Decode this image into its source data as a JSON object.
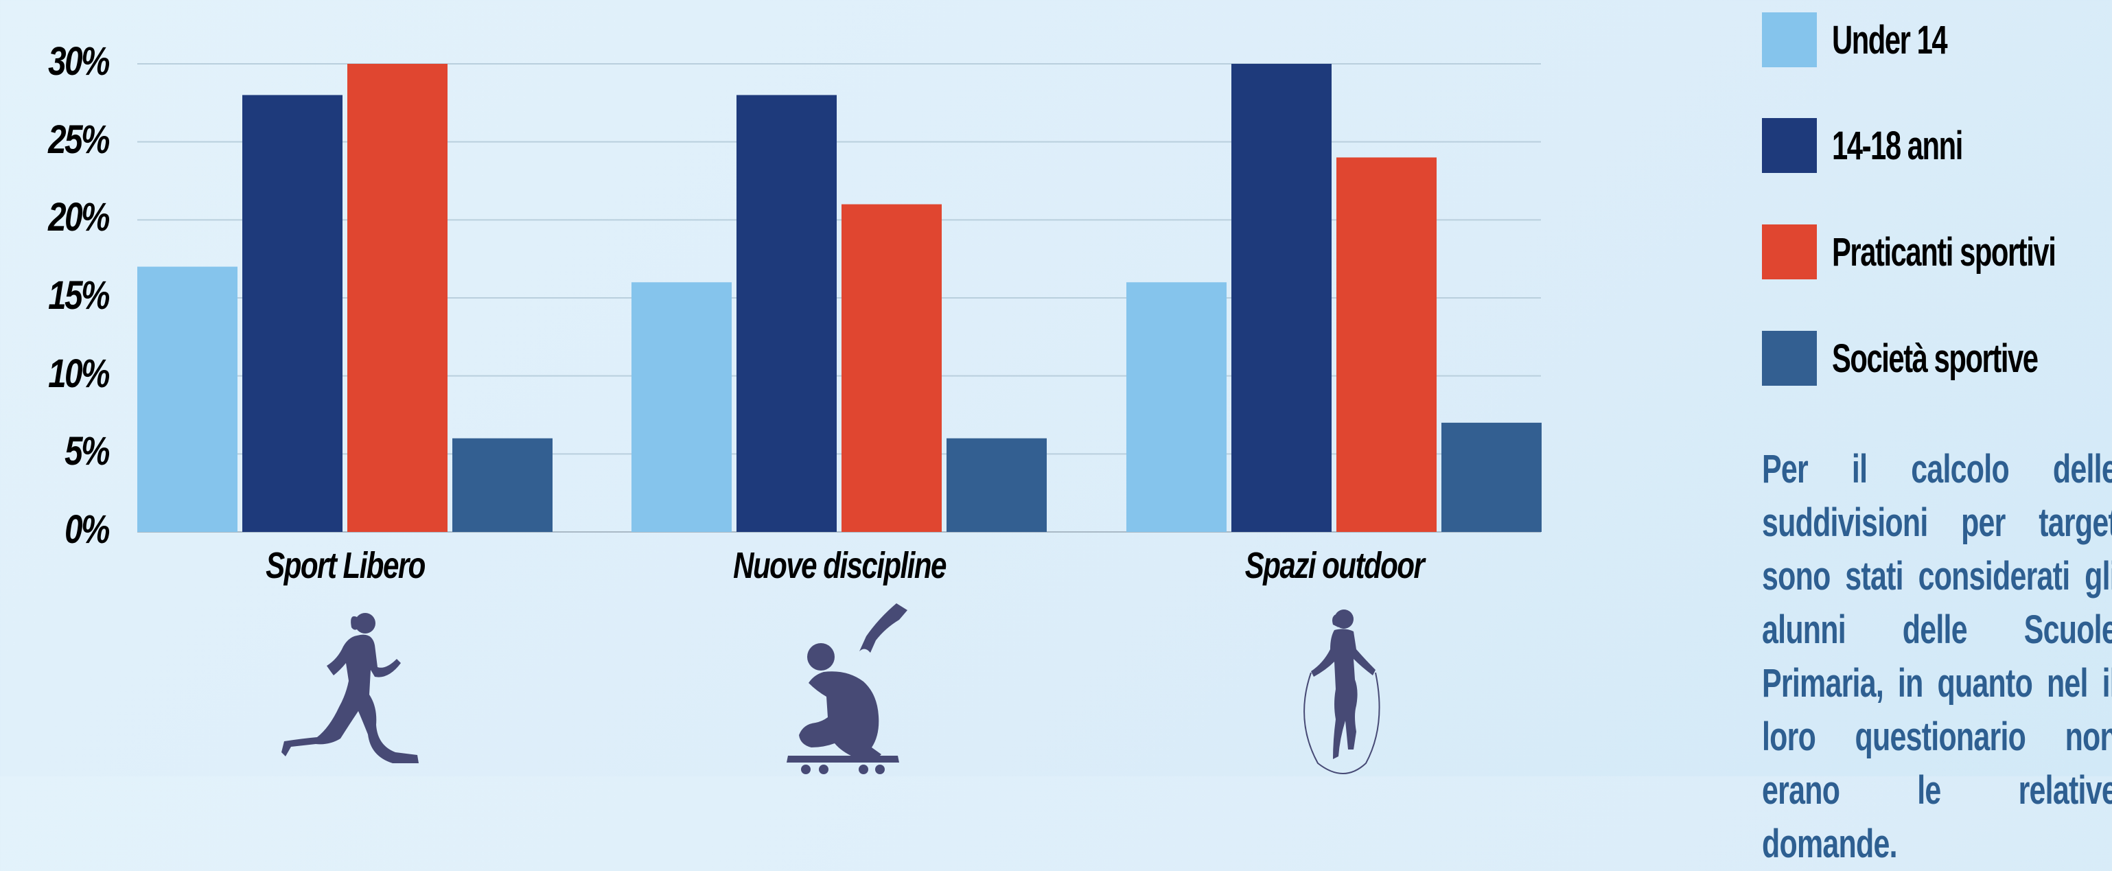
{
  "chart_data": {
    "type": "bar",
    "categories": [
      "Sport Libero",
      "Nuove discipline",
      "Spazi outdoor"
    ],
    "series": [
      {
        "name": "Under 14",
        "values": [
          17,
          16,
          16
        ],
        "color": "#85c4ec"
      },
      {
        "name": "14-18 anni",
        "values": [
          28,
          28,
          30
        ],
        "color": "#1e3a7b"
      },
      {
        "name": "Praticanti sportivi",
        "values": [
          30,
          21,
          24
        ],
        "color": "#e04630"
      },
      {
        "name": "Società sportive",
        "values": [
          6,
          6,
          7
        ],
        "color": "#335f91"
      }
    ],
    "ylim": [
      0,
      30
    ],
    "yticks": [
      "0%",
      "5%",
      "10%",
      "15%",
      "20%",
      "25%",
      "30%"
    ],
    "grid": true,
    "legend_position": "right"
  },
  "note": "Per il calcolo delle suddivisioni per target sono stati considerati gli alunni delle Scuole Primaria, in quanto nel il loro questionario non erano le relative domande.",
  "icons": [
    "runner-icon",
    "skateboarder-icon",
    "jump-rope-icon"
  ],
  "colors": {
    "icon": "#474a75",
    "note_text": "#2e5f91"
  }
}
